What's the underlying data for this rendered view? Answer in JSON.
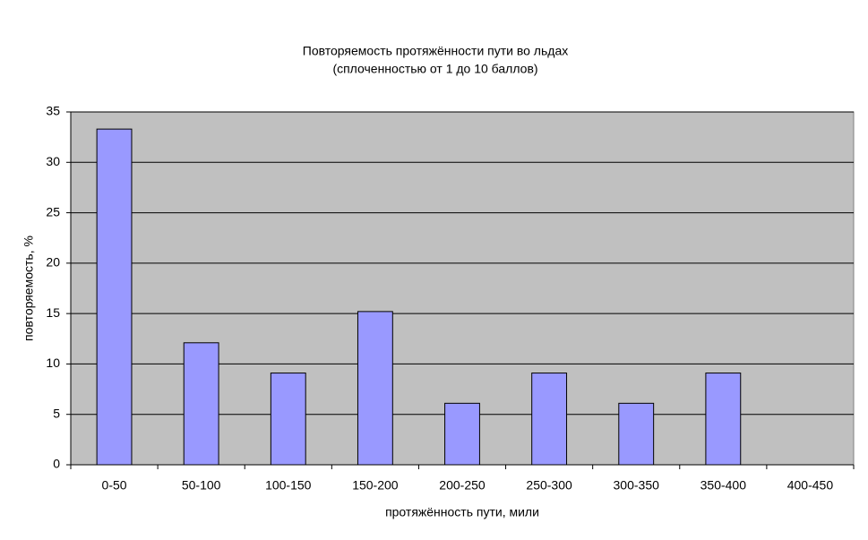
{
  "chart_data": {
    "type": "bar",
    "title": "Повторяемость протяжённости пути во льдах",
    "subtitle": "(сплоченностью от 1 до 10 баллов)",
    "x_label": "протяжённость пути, мили",
    "y_label": "повторяемость, %",
    "categories": [
      "0-50",
      "50-100",
      "100-150",
      "150-200",
      "200-250",
      "250-300",
      "300-350",
      "350-400",
      "400-450"
    ],
    "values": [
      33.3,
      12.1,
      9.1,
      15.2,
      6.1,
      9.1,
      6.1,
      9.1,
      0
    ],
    "color": "#9999ff",
    "ylim": [
      0,
      35
    ],
    "yticks": [
      0,
      5,
      10,
      15,
      20,
      25,
      30,
      35
    ],
    "grid": true
  }
}
